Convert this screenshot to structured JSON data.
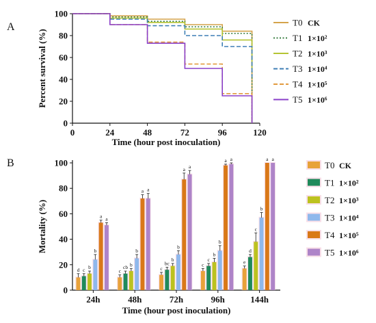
{
  "chart_data": [
    {
      "panel": "A",
      "type": "line",
      "step": true,
      "xlabel": "Time (hour post inoculation)",
      "ylabel": "Percent survival (%)",
      "xlim": [
        0,
        120
      ],
      "ylim": [
        0,
        100
      ],
      "xticks": [
        "0",
        "24",
        "48",
        "72",
        "96",
        "120"
      ],
      "yticks": [
        "0",
        "20",
        "40",
        "60",
        "80",
        "100"
      ],
      "legend_position": "right",
      "series": [
        {
          "name": "T0",
          "dose": "CK",
          "color": "#d4a34b",
          "dash": "solid",
          "points": [
            [
              0,
              100
            ],
            [
              24,
              100
            ],
            [
              24,
              98
            ],
            [
              48,
              98
            ],
            [
              48,
              95
            ],
            [
              72,
              95
            ],
            [
              72,
              90
            ],
            [
              96,
              90
            ],
            [
              96,
              84
            ],
            [
              115,
              84
            ],
            [
              115,
              0
            ]
          ]
        },
        {
          "name": "T1",
          "dose": "1×10²",
          "color": "#3b7f43",
          "dash": "dot",
          "points": [
            [
              0,
              100
            ],
            [
              24,
              100
            ],
            [
              24,
              97
            ],
            [
              48,
              97
            ],
            [
              48,
              93
            ],
            [
              72,
              93
            ],
            [
              72,
              88
            ],
            [
              96,
              88
            ],
            [
              96,
              82
            ],
            [
              115,
              82
            ],
            [
              115,
              0
            ]
          ]
        },
        {
          "name": "T2",
          "dose": "1×10³",
          "color": "#b5c433",
          "dash": "solid",
          "points": [
            [
              0,
              100
            ],
            [
              24,
              100
            ],
            [
              24,
              96
            ],
            [
              48,
              96
            ],
            [
              48,
              92
            ],
            [
              72,
              92
            ],
            [
              72,
              86
            ],
            [
              96,
              86
            ],
            [
              96,
              76
            ],
            [
              115,
              76
            ],
            [
              115,
              50
            ]
          ]
        },
        {
          "name": "T3",
          "dose": "1×10⁴",
          "color": "#3f7fb5",
          "dash": "dash",
          "points": [
            [
              0,
              100
            ],
            [
              24,
              100
            ],
            [
              24,
              95
            ],
            [
              48,
              95
            ],
            [
              48,
              89
            ],
            [
              72,
              89
            ],
            [
              72,
              80
            ],
            [
              96,
              80
            ],
            [
              96,
              70
            ],
            [
              115,
              70
            ],
            [
              115,
              42
            ]
          ]
        },
        {
          "name": "T4",
          "dose": "1×10⁵",
          "color": "#e29a3e",
          "dash": "dash",
          "points": [
            [
              0,
              100
            ],
            [
              24,
              100
            ],
            [
              24,
              90
            ],
            [
              48,
              90
            ],
            [
              48,
              74
            ],
            [
              72,
              74
            ],
            [
              72,
              54
            ],
            [
              96,
              54
            ],
            [
              96,
              27
            ],
            [
              115,
              27
            ],
            [
              115,
              0
            ]
          ]
        },
        {
          "name": "T5",
          "dose": "1×10⁶",
          "color": "#8a3fc9",
          "dash": "solid",
          "points": [
            [
              0,
              100
            ],
            [
              24,
              100
            ],
            [
              24,
              90
            ],
            [
              48,
              90
            ],
            [
              48,
              73
            ],
            [
              72,
              73
            ],
            [
              72,
              50
            ],
            [
              96,
              50
            ],
            [
              96,
              25
            ],
            [
              115,
              25
            ],
            [
              115,
              0
            ]
          ]
        }
      ]
    },
    {
      "panel": "B",
      "type": "bar",
      "xlabel": "Time (hour post inoculation)",
      "ylabel": "Mortality (%)",
      "ylim": [
        0,
        100
      ],
      "yticks": [
        "0",
        "20",
        "40",
        "60",
        "80",
        "100"
      ],
      "categories": [
        "24h",
        "48h",
        "72h",
        "96h",
        "144h"
      ],
      "legend_position": "right",
      "series": [
        {
          "name": "T0",
          "dose": "CK",
          "color": "#e8a23a",
          "values": [
            10,
            10,
            12,
            15,
            17
          ],
          "errors": [
            3,
            2,
            2,
            2,
            2
          ],
          "letters": [
            "d",
            "c",
            "c",
            "c",
            "e"
          ]
        },
        {
          "name": "T1",
          "dose": "1×10²",
          "color": "#1f8a5b",
          "values": [
            11,
            13,
            16,
            19,
            26
          ],
          "errors": [
            2,
            2,
            2,
            2,
            2
          ],
          "letters": [
            "c",
            "cb",
            "bc",
            "c",
            "d"
          ]
        },
        {
          "name": "T2",
          "dose": "1×10³",
          "color": "#bcc21f",
          "values": [
            13,
            15,
            19,
            22,
            38
          ],
          "errors": [
            2,
            2,
            2,
            3,
            7
          ],
          "letters": [
            "b",
            "b",
            "b",
            "b",
            "c"
          ]
        },
        {
          "name": "T3",
          "dose": "1×10⁴",
          "color": "#8fb8ec",
          "values": [
            24,
            25,
            28,
            31,
            57
          ],
          "errors": [
            4,
            3,
            3,
            4,
            4
          ],
          "letters": [
            "b",
            "b",
            "b",
            "b",
            "b"
          ]
        },
        {
          "name": "T4",
          "dose": "1×10⁵",
          "color": "#d97818",
          "values": [
            53,
            72,
            87,
            98,
            100
          ],
          "errors": [
            2,
            3,
            5,
            1,
            0
          ],
          "letters": [
            "a",
            "a",
            "a",
            "a",
            "a"
          ]
        },
        {
          "name": "T5",
          "dose": "1×10⁶",
          "color": "#ae84c8",
          "values": [
            51,
            72,
            91,
            99,
            100
          ],
          "errors": [
            2,
            4,
            3,
            1,
            0
          ],
          "letters": [
            "a",
            "a",
            "a",
            "a",
            "a"
          ]
        }
      ]
    }
  ],
  "panels": {
    "a_label": "A",
    "b_label": "B"
  }
}
